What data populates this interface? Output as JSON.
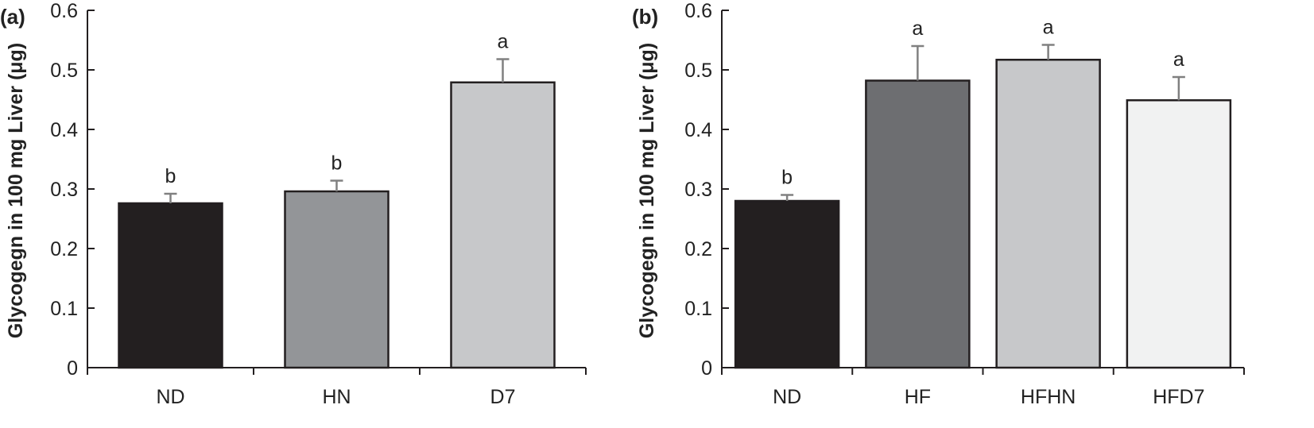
{
  "chart_data": [
    {
      "type": "bar",
      "panel_label": "(a)",
      "ylabel": "Glycogegn in 100 mg Liver (μg)",
      "xlabel": "",
      "ylim": [
        0,
        0.6
      ],
      "yticks": [
        "0",
        "0.1",
        "0.2",
        "0.3",
        "0.4",
        "0.5",
        "0.6"
      ],
      "categories": [
        "ND",
        "HN",
        "D7"
      ],
      "values": [
        0.276,
        0.296,
        0.479
      ],
      "errors": [
        0.016,
        0.018,
        0.039
      ],
      "significance": [
        "b",
        "b",
        "a"
      ],
      "colors": [
        "#231f20",
        "#939598",
        "#c7c8ca"
      ],
      "grid": false
    },
    {
      "type": "bar",
      "panel_label": "(b)",
      "ylabel": "Glycogegn in 100 mg Liver (μg)",
      "xlabel": "",
      "ylim": [
        0,
        0.6
      ],
      "yticks": [
        "0",
        "0.1",
        "0.2",
        "0.3",
        "0.4",
        "0.5",
        "0.6"
      ],
      "categories": [
        "ND",
        "HF",
        "HFHN",
        "HFD7"
      ],
      "values": [
        0.28,
        0.482,
        0.517,
        0.449
      ],
      "errors": [
        0.01,
        0.058,
        0.025,
        0.039
      ],
      "significance": [
        "b",
        "a",
        "a",
        "a"
      ],
      "colors": [
        "#231f20",
        "#6d6e71",
        "#c7c8ca",
        "#f1f2f2"
      ],
      "grid": false
    }
  ],
  "style": {
    "axis_color": "#231f20",
    "error_bar_color": "#808080",
    "bar_edge_color": "#231f20"
  }
}
